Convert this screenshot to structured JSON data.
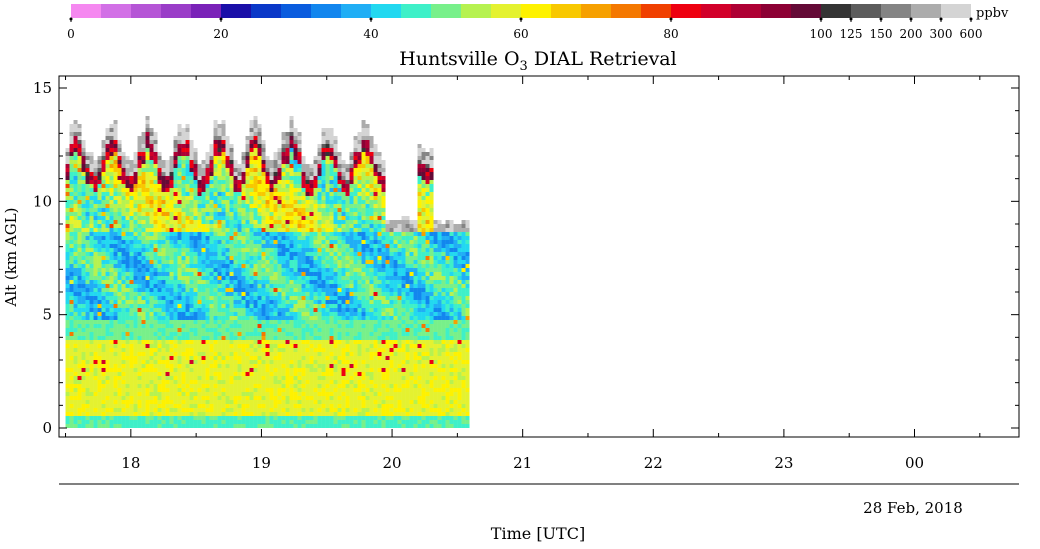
{
  "chart_data": {
    "type": "heatmap",
    "title": "Huntsville O",
    "title_sub": "3",
    "title_rest": " DIAL Retrieval",
    "ylabel": "Alt (km AGL)",
    "xlabel": "Time [UTC]",
    "date_label": "28 Feb, 2018",
    "ylim": [
      0,
      15.5
    ],
    "y_ticks": [
      0,
      5,
      10,
      15
    ],
    "x_hour_range": [
      17.45,
      24.8
    ],
    "x_ticks": [
      {
        "hour": 18,
        "label": "18"
      },
      {
        "hour": 19,
        "label": "19"
      },
      {
        "hour": 20,
        "label": "20"
      },
      {
        "hour": 21,
        "label": "21"
      },
      {
        "hour": 22,
        "label": "22"
      },
      {
        "hour": 23,
        "label": "23"
      },
      {
        "hour": 24,
        "label": "00"
      }
    ],
    "data_extent_hours": [
      17.5,
      20.6
    ],
    "colorbar": {
      "unit": "ppbv",
      "labels": [
        {
          "index": 0,
          "text": "0"
        },
        {
          "index": 5,
          "text": "20"
        },
        {
          "index": 10,
          "text": "40"
        },
        {
          "index": 15,
          "text": "60"
        },
        {
          "index": 20,
          "text": "80"
        },
        {
          "index": 25,
          "text": "100"
        },
        {
          "index": 26,
          "text": "125"
        },
        {
          "index": 27,
          "text": "150"
        },
        {
          "index": 28,
          "text": "200"
        },
        {
          "index": 29,
          "text": "300"
        },
        {
          "index": 30,
          "text": "600"
        }
      ],
      "colors": [
        "#f588f0",
        "#d270e6",
        "#b555d6",
        "#9a3dc8",
        "#7a22b8",
        "#1a0fa8",
        "#0a38c8",
        "#0a5cde",
        "#1286ee",
        "#20aef5",
        "#22d8f0",
        "#3ef0c8",
        "#78f08a",
        "#b6f250",
        "#e4f230",
        "#fef200",
        "#f8c800",
        "#f6a000",
        "#f47800",
        "#f04000",
        "#ee0010",
        "#d2002a",
        "#ae0034",
        "#8c0034",
        "#640a36",
        "#343434",
        "#5c5c5c",
        "#848484",
        "#acacac",
        "#d4d4d4"
      ]
    }
  }
}
